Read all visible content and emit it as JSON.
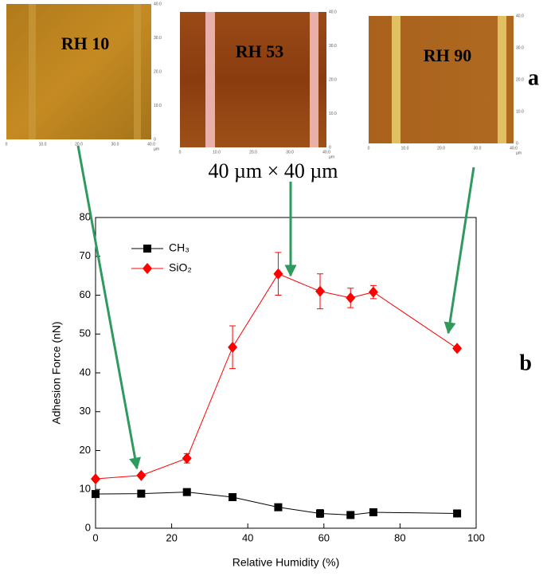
{
  "figure": {
    "panels": [
      {
        "label": "RH 10"
      },
      {
        "label": "RH 53"
      },
      {
        "label": "RH 90"
      }
    ],
    "image_ticks": [
      "0",
      "10.0",
      "20.0",
      "30.0",
      "40.0"
    ],
    "image_unit": "µm",
    "scale_text": "40 µm × 40 µm",
    "label_a": "a",
    "label_b": "b"
  },
  "chart_data": {
    "type": "line",
    "x_label": "Relative Humidity (%)",
    "y_label": "Adhesion Force (nN)",
    "x": [
      0,
      12,
      24,
      36,
      48,
      59,
      67,
      73,
      95
    ],
    "series": [
      {
        "name": "CH₃",
        "color": "#000000",
        "marker": "square",
        "values": [
          8.8,
          8.9,
          9.3,
          8.0,
          5.4,
          3.8,
          3.4,
          4.1,
          3.8
        ],
        "errors": [
          0.3,
          0.3,
          0.3,
          0.5,
          0.3,
          1.0,
          0.5,
          0.8,
          0.4
        ]
      },
      {
        "name": "SiO₂",
        "color": "#ff0000",
        "marker": "diamond",
        "values": [
          12.7,
          13.6,
          18.0,
          46.6,
          65.5,
          61.0,
          59.3,
          60.8,
          46.3
        ],
        "errors": [
          0.3,
          0.4,
          1.2,
          5.5,
          5.5,
          4.5,
          2.5,
          1.7,
          0.5
        ]
      }
    ],
    "xlim": [
      0,
      100
    ],
    "xticks": [
      0,
      20,
      40,
      60,
      80,
      100
    ],
    "ylim": [
      0,
      80
    ],
    "yticks": [
      0,
      10,
      20,
      30,
      40,
      50,
      60,
      70,
      80
    ],
    "legend": "upper left"
  }
}
